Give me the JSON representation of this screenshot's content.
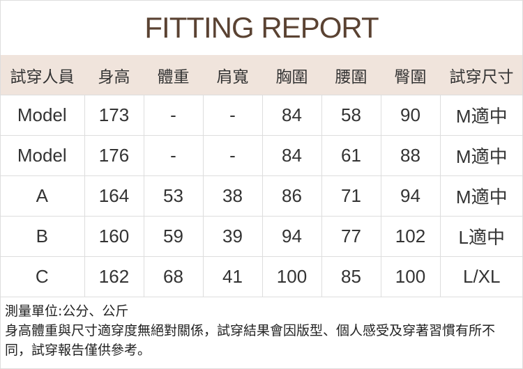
{
  "title": "FITTING REPORT",
  "headers": [
    "試穿人員",
    "身高",
    "體重",
    "肩寬",
    "胸圍",
    "腰圍",
    "臀圍",
    "試穿尺寸"
  ],
  "rows": [
    [
      "Model",
      "173",
      "-",
      "-",
      "84",
      "58",
      "90",
      "M適中"
    ],
    [
      "Model",
      "176",
      "-",
      "-",
      "84",
      "61",
      "88",
      "M適中"
    ],
    [
      "A",
      "164",
      "53",
      "38",
      "86",
      "71",
      "94",
      "M適中"
    ],
    [
      "B",
      "160",
      "59",
      "39",
      "94",
      "77",
      "102",
      "L適中"
    ],
    [
      "C",
      "162",
      "68",
      "41",
      "100",
      "85",
      "100",
      "L/XL"
    ]
  ],
  "footer": {
    "units": "測量單位:公分、公斤",
    "note": "身高體重與尺寸適穿度無絕對關係，試穿結果會因版型、個人感受及穿著習慣有所不同，試穿報告僅供參考。"
  }
}
